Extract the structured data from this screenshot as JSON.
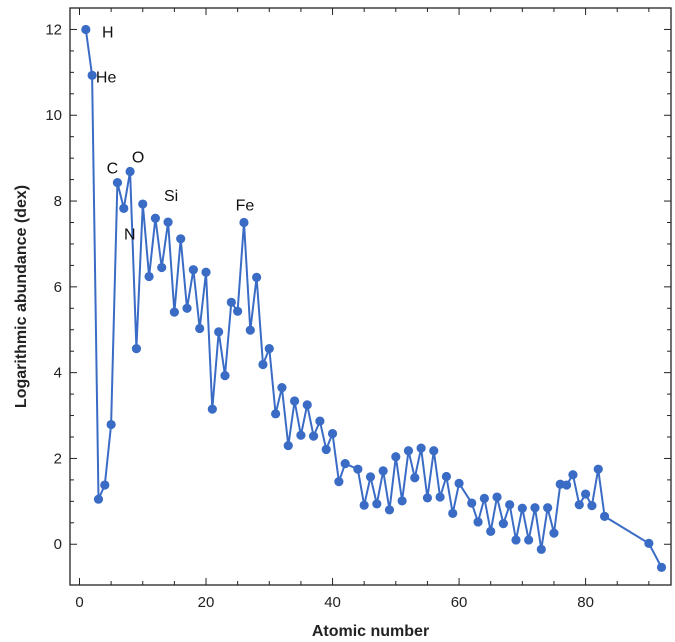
{
  "chart_data": {
    "type": "line",
    "xlabel": "Atomic number",
    "ylabel": "Logarithmic abundance (dex)",
    "xlim": [
      -1.5,
      93.5
    ],
    "ylim": [
      -0.95,
      12.5
    ],
    "xticks": [
      0,
      20,
      40,
      60,
      80
    ],
    "yticks": [
      0,
      2,
      4,
      6,
      8,
      10,
      12
    ],
    "grid": false,
    "series_color": "#3a6cc6",
    "series": [
      {
        "x": [
          1,
          2,
          3,
          4,
          5,
          6,
          7,
          8,
          9,
          10,
          11,
          12,
          13,
          14,
          15,
          16,
          17,
          18,
          19,
          20,
          21,
          22,
          23,
          24,
          25,
          26,
          27,
          28,
          29,
          30,
          31,
          32,
          33,
          34,
          35,
          36,
          37,
          38,
          39,
          40,
          41,
          42,
          44,
          45,
          46,
          47,
          48,
          49,
          50,
          51,
          52,
          53,
          54,
          55,
          56,
          57,
          58,
          59,
          60,
          62,
          63,
          64,
          65,
          66,
          67,
          68,
          69,
          70,
          71,
          72,
          73,
          74,
          75,
          76,
          77,
          78,
          79,
          80,
          81,
          82,
          83,
          90,
          92
        ],
        "y": [
          12.0,
          10.93,
          1.05,
          1.38,
          2.79,
          8.43,
          7.83,
          8.69,
          4.56,
          7.93,
          6.24,
          7.6,
          6.45,
          7.51,
          5.41,
          7.12,
          5.5,
          6.4,
          5.03,
          6.34,
          3.15,
          4.95,
          3.93,
          5.64,
          5.43,
          7.5,
          4.99,
          6.22,
          4.19,
          4.56,
          3.04,
          3.65,
          2.3,
          3.34,
          2.54,
          3.25,
          2.52,
          2.87,
          2.21,
          2.58,
          1.46,
          1.88,
          1.75,
          0.91,
          1.57,
          0.94,
          1.71,
          0.8,
          2.04,
          1.01,
          2.18,
          1.55,
          2.24,
          1.08,
          2.18,
          1.1,
          1.58,
          0.72,
          1.42,
          0.96,
          0.52,
          1.07,
          0.3,
          1.1,
          0.48,
          0.92,
          0.1,
          0.84,
          0.1,
          0.85,
          -0.12,
          0.85,
          0.26,
          1.4,
          1.38,
          1.62,
          0.92,
          1.17,
          0.9,
          1.75,
          0.65,
          0.02,
          -0.54
        ]
      }
    ],
    "annotations": [
      {
        "label": "H",
        "x": 1,
        "y": 12.0
      },
      {
        "label": "He",
        "x": 2,
        "y": 10.93
      },
      {
        "label": "C",
        "x": 6,
        "y": 8.43
      },
      {
        "label": "N",
        "x": 7,
        "y": 7.83
      },
      {
        "label": "O",
        "x": 8,
        "y": 8.69
      },
      {
        "label": "Si",
        "x": 14,
        "y": 7.51
      },
      {
        "label": "Fe",
        "x": 26,
        "y": 7.5
      }
    ]
  }
}
